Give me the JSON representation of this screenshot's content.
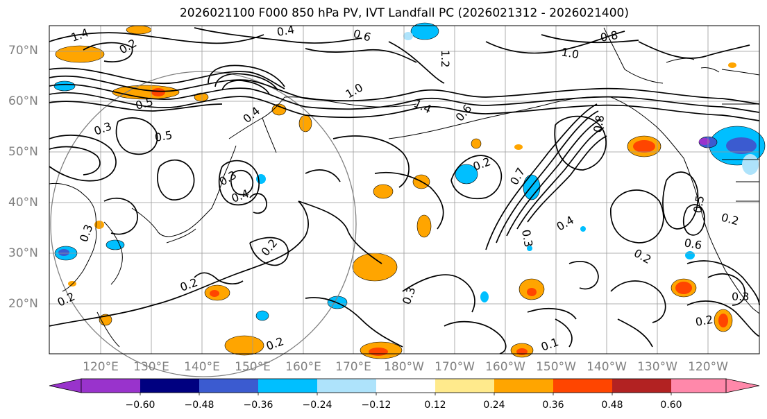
{
  "title": "2026021100 F000 850 hPa PV, IVT Landfall PC (2026021312 - 2026021400)",
  "lat_labels": [
    "70°N",
    "60°N",
    "50°N",
    "40°N",
    "30°N",
    "20°N"
  ],
  "lon_labels": [
    "120°E",
    "130°E",
    "140°E",
    "150°E",
    "160°E",
    "170°E",
    "180°W",
    "170°W",
    "160°W",
    "150°W",
    "140°W",
    "130°W",
    "120°W"
  ],
  "colorbar": {
    "tick_labels": [
      "−0.60",
      "−0.48",
      "−0.36",
      "−0.24",
      "−0.12",
      "0.12",
      "0.24",
      "0.36",
      "0.48",
      "0.60"
    ],
    "colors": [
      "#9933cc",
      "#000080",
      "#3b5bd0",
      "#00bfff",
      "#aee3fb",
      "#ffffff",
      "#ffea8c",
      "#ffa500",
      "#ff4500",
      "#b22222",
      "#ff88aa"
    ]
  },
  "contour_labels": [
    "1.4",
    "0.4",
    "0.6",
    "0.2",
    "0.8",
    "1.0",
    "1.2",
    "1.4",
    "0.3",
    "0.5",
    "0.5",
    "1.0",
    "0.6",
    "0.4",
    "0.2",
    "0.3",
    "0.4",
    "0.2",
    "0.7",
    "0.4",
    "0.3",
    "0.5",
    "0.6",
    "0.2",
    "0.2",
    "0.3",
    "0.2",
    "0.3",
    "0.2",
    "0.2",
    "0.2",
    "0.1",
    "0.3",
    "0.8"
  ]
}
